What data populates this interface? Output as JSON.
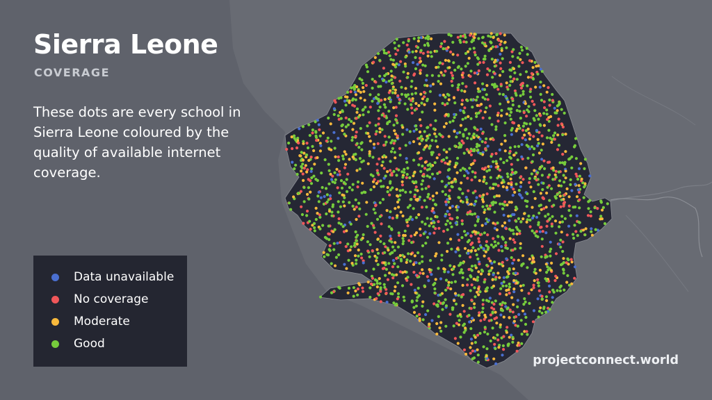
{
  "title": "Sierra Leone",
  "subtitle": "COVERAGE",
  "description": "These dots are every school in Sierra Leone coloured by the quality of available internet coverage.",
  "legend": {
    "items": [
      {
        "label": "Data unavailable",
        "color": "#4a6fd0"
      },
      {
        "label": "No coverage",
        "color": "#f0575a"
      },
      {
        "label": "Moderate",
        "color": "#f8b93c"
      },
      {
        "label": "Good",
        "color": "#76cc3c"
      }
    ]
  },
  "source": "projectconnect.world",
  "colors": {
    "sea": "#5f626b",
    "land_neighbor": "#6a6d75",
    "country_fill": "#252734",
    "border": "#8a8d94"
  }
}
